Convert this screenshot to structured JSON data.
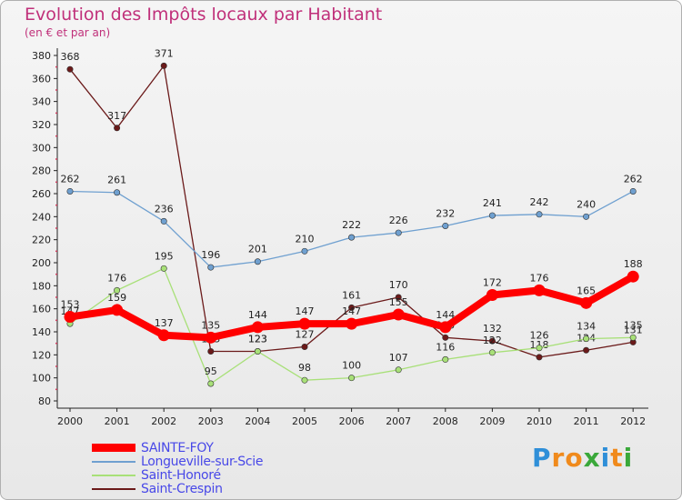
{
  "chart_data": {
    "type": "line",
    "title": "Evolution des Impôts locaux par Habitant",
    "subtitle": "(en € et par an)",
    "categories": [
      "2000",
      "2001",
      "2002",
      "2003",
      "2004",
      "2005",
      "2006",
      "2007",
      "2008",
      "2009",
      "2010",
      "2011",
      "2012"
    ],
    "ylim": [
      80,
      380
    ],
    "yticks": [
      80,
      100,
      120,
      140,
      160,
      180,
      200,
      220,
      240,
      260,
      280,
      300,
      320,
      340,
      360,
      380
    ],
    "grid": false,
    "legend_position": "bottom-left",
    "series": [
      {
        "name": "Saint-Crespin",
        "color": "#6b1a1a",
        "width": 1.3,
        "values": [
          368,
          317,
          371,
          123,
          123,
          127,
          161,
          170,
          135,
          132,
          118,
          124,
          131
        ],
        "labels": [
          "368",
          "317",
          "371",
          "123",
          "123",
          "127",
          "161",
          "170",
          "135",
          "132",
          "118",
          "124",
          "131"
        ]
      },
      {
        "name": "Saint-Honoré",
        "color": "#a8e078",
        "width": 1.3,
        "values": [
          147,
          176,
          195,
          95,
          123,
          98,
          100,
          107,
          116,
          122,
          126,
          134,
          135
        ],
        "labels": [
          "147",
          "176",
          "195",
          "95",
          "123",
          "98",
          "100",
          "107",
          "116",
          "122",
          "126",
          "134",
          "135"
        ]
      },
      {
        "name": "Longueville-sur-Scie",
        "color": "#6fa0d0",
        "width": 1.3,
        "values": [
          262,
          261,
          236,
          196,
          201,
          210,
          222,
          226,
          232,
          241,
          242,
          240,
          262
        ],
        "labels": [
          "262",
          "261",
          "236",
          "196",
          "201",
          "210",
          "222",
          "226",
          "232",
          "241",
          "242",
          "240",
          "262"
        ]
      },
      {
        "name": "SAINTE-FOY",
        "color": "#ff0000",
        "width": 8,
        "values": [
          153,
          159,
          137,
          135,
          144,
          147,
          147,
          155,
          144,
          172,
          176,
          165,
          188
        ],
        "labels": [
          "153",
          "159",
          "137",
          "135",
          "144",
          "147",
          "147",
          "155",
          "144",
          "172",
          "176",
          "165",
          "188"
        ]
      }
    ],
    "legend_order": [
      "SAINTE-FOY",
      "Longueville-sur-Scie",
      "Saint-Honoré",
      "Saint-Crespin"
    ]
  },
  "brand": {
    "letters": [
      "P",
      "r",
      "o",
      "x",
      "i",
      "t",
      "i"
    ],
    "colors": [
      "#2f8fd8",
      "#f08a1c",
      "#f08a1c",
      "#3aa83a",
      "#2f8fd8",
      "#f08a1c",
      "#3aa83a"
    ]
  }
}
